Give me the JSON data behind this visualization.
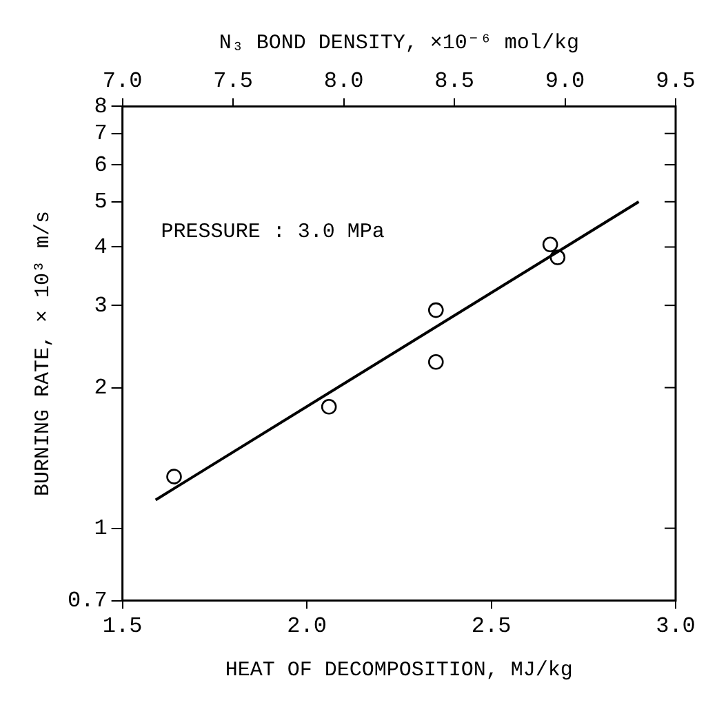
{
  "chart_data": {
    "type": "scatter",
    "xlabel": "HEAT OF DECOMPOSITION, MJ/kg",
    "x2label": "N₃ BOND DENSITY, ×10⁻⁶ mol/kg",
    "ylabel": "BURNING RATE, × 10³ m/s",
    "annotations": [
      "PRESSURE : 3.0 MPa"
    ],
    "log": "y",
    "grid": false,
    "marker": "circle",
    "xlim": [
      1.5,
      3.0
    ],
    "xticks": [
      {
        "value": 1.5,
        "label": "1.5"
      },
      {
        "value": 2,
        "label": "2.0"
      },
      {
        "value": 2.5,
        "label": "2.5"
      },
      {
        "value": 3,
        "label": "3.0"
      }
    ],
    "x2lim": [
      7.0,
      9.5
    ],
    "x2ticks": [
      {
        "value": 7,
        "label": "7.0"
      },
      {
        "value": 7.5,
        "label": "7.5"
      },
      {
        "value": 8,
        "label": "8.0"
      },
      {
        "value": 8.5,
        "label": "8.5"
      },
      {
        "value": 9,
        "label": "9.0"
      },
      {
        "value": 9.5,
        "label": "9.5"
      }
    ],
    "ylim": [
      0.7,
      8
    ],
    "yticks": [
      0.7,
      1,
      2,
      3,
      4,
      5,
      6,
      7,
      8
    ],
    "series": [
      {
        "type": "scatter",
        "color": "#000000",
        "x": [
          1.64,
          2.06,
          2.35,
          2.35,
          2.66,
          2.68
        ],
        "values": [
          1.29,
          1.82,
          2.27,
          2.93,
          4.05,
          3.8
        ]
      },
      {
        "type": "line",
        "color": "#000000",
        "marker": "none",
        "x": [
          1.59,
          2.9
        ],
        "values": [
          1.15,
          5.0
        ]
      }
    ]
  }
}
